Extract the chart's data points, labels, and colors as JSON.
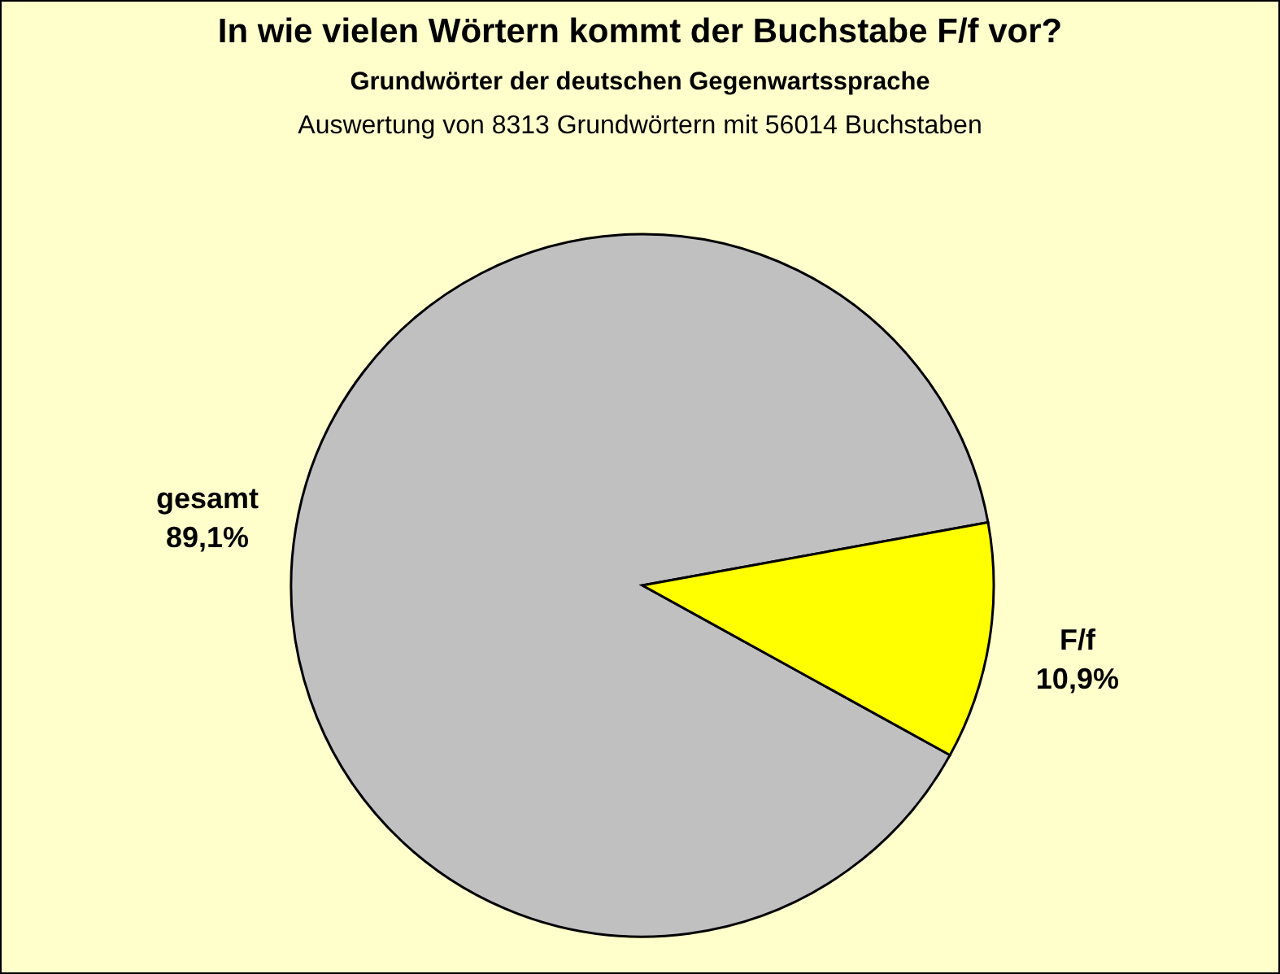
{
  "chart_data": {
    "type": "pie",
    "title": "In wie vielen Wörtern kommt der Buchstabe F/f vor?",
    "subtitle": "Grundwörter der deutschen Gegenwartssprache",
    "annotations": [
      "Auswertung von 8313 Grundwörtern mit 56014 Buchstaben"
    ],
    "categories": [
      "gesamt",
      "F/f"
    ],
    "values": [
      89.1,
      10.9
    ],
    "colors": [
      "#c0c0c0",
      "#ffff00"
    ],
    "value_labels": [
      "89,1%",
      "10,9%"
    ]
  }
}
